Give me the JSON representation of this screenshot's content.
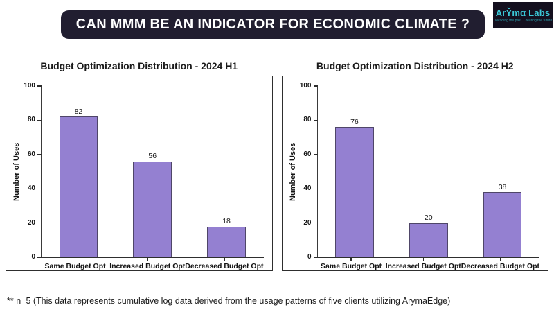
{
  "header": {
    "banner_text": "CAN MMM BE AN INDICATOR FOR ECONOMIC CLIMATE ?"
  },
  "logo": {
    "name": "ArY̌mα Labs",
    "tagline": "Decoding the past. Creating the future"
  },
  "chart_data": [
    {
      "type": "bar",
      "title": "Budget Optimization Distribution  - 2024 H1",
      "categories": [
        "Same Budget Opt",
        "Increased Budget Opt",
        "Decreased Budget Opt"
      ],
      "values": [
        82,
        56,
        18
      ],
      "xlabel": "",
      "ylabel": "Number of Uses",
      "ylim": [
        0,
        100
      ],
      "yticks": [
        0,
        20,
        40,
        60,
        80,
        100
      ],
      "grid": "off",
      "legend": "none",
      "bar_color": "#9480d1",
      "bar_edge_color": "#4f4668"
    },
    {
      "type": "bar",
      "title": "Budget Optimization Distribution  - 2024 H2",
      "categories": [
        "Same Budget Opt",
        "Increased Budget Opt",
        "Decreased Budget Opt"
      ],
      "values": [
        76,
        20,
        38
      ],
      "xlabel": "",
      "ylabel": "Number of Uses",
      "ylim": [
        0,
        100
      ],
      "yticks": [
        0,
        20,
        40,
        60,
        80,
        100
      ],
      "grid": "off",
      "legend": "none",
      "bar_color": "#9480d1",
      "bar_edge_color": "#4f4668"
    }
  ],
  "footnote": {
    "text": "** n=5 (This data represents cumulative log data derived from the usage patterns of five clients utilizing ArymaEdge)"
  },
  "colors": {
    "banner_bg": "#211e30",
    "banner_text": "#ffffff",
    "logo_bg": "#14101f",
    "logo_accent": "#3bc9d8",
    "bar_fill": "#9480d1",
    "bar_edge": "#4f4668",
    "axis": "#2e2e2e"
  }
}
